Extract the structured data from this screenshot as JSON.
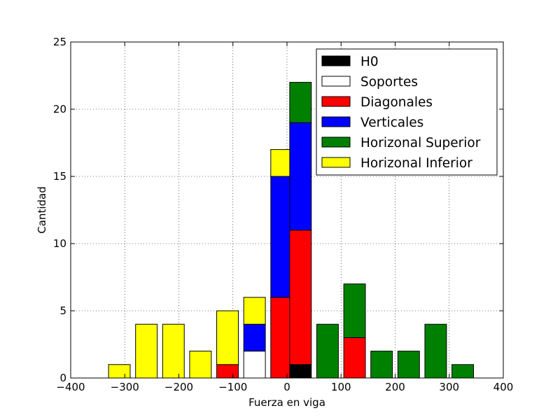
{
  "chart_data": {
    "type": "bar",
    "stacked": true,
    "xlabel": "Fuerza en viga",
    "ylabel": "Cantidad",
    "xlim": [
      -400,
      400
    ],
    "ylim": [
      0,
      25
    ],
    "xticks": [
      "−400",
      "−300",
      "−200",
      "−100",
      "0",
      "100",
      "200",
      "300",
      "400"
    ],
    "yticks": [
      "0",
      "5",
      "10",
      "15",
      "20",
      "25"
    ],
    "grid": true,
    "legend_position": "top-right",
    "bin_centers": [
      -360,
      -310,
      -260,
      -210,
      -160,
      -110,
      -60,
      -10,
      25,
      75,
      125,
      175,
      225,
      275,
      325,
      375
    ],
    "bar_width": 40,
    "series": [
      {
        "name": "H0",
        "color": "#000000",
        "values": [
          0,
          0,
          0,
          0,
          0,
          0,
          0,
          0,
          1,
          0,
          0,
          0,
          0,
          0,
          0,
          0
        ]
      },
      {
        "name": "Soportes",
        "color": "#ffffff",
        "values": [
          0,
          0,
          0,
          0,
          0,
          0,
          2,
          0,
          0,
          0,
          0,
          0,
          0,
          0,
          0,
          0
        ]
      },
      {
        "name": "Diagonales",
        "color": "#ff0000",
        "values": [
          0,
          0,
          0,
          0,
          0,
          1,
          0,
          6,
          10,
          0,
          3,
          0,
          0,
          0,
          0,
          0
        ]
      },
      {
        "name": "Verticales",
        "color": "#0000ff",
        "values": [
          0,
          0,
          0,
          0,
          0,
          0,
          2,
          9,
          8,
          0,
          0,
          0,
          0,
          0,
          0,
          0
        ]
      },
      {
        "name": "Horizonal Superior",
        "color": "#008000",
        "values": [
          0,
          0,
          0,
          0,
          0,
          0,
          0,
          0,
          3,
          4,
          4,
          2,
          2,
          4,
          1,
          0
        ]
      },
      {
        "name": "Horizonal Inferior",
        "color": "#ffff00",
        "values": [
          0,
          1,
          4,
          4,
          2,
          4,
          2,
          2,
          0,
          0,
          0,
          0,
          0,
          0,
          0,
          0
        ]
      }
    ]
  }
}
